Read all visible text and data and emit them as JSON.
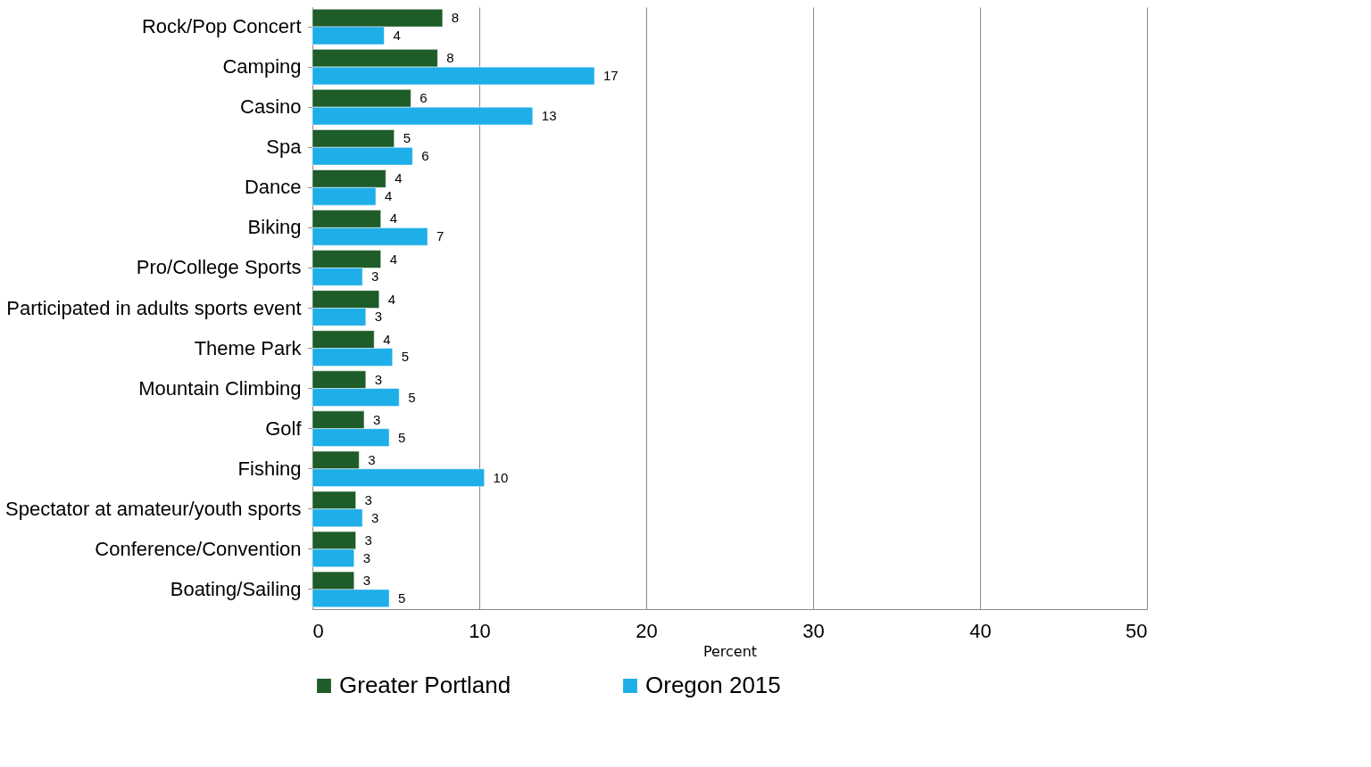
{
  "chart_data": {
    "type": "bar",
    "orientation": "horizontal",
    "xlabel": "Percent",
    "categories": [
      "Rock/Pop Concert",
      "Camping",
      "Casino",
      "Spa",
      "Dance",
      "Biking",
      "Pro/College Sports",
      "Participated in adults sports event",
      "Theme Park",
      "Mountain Climbing",
      "Golf",
      "Fishing",
      "Spectator at amateur/youth sports",
      "Conference/Convention",
      "Boating/Sailing"
    ],
    "series": [
      {
        "name": "Greater Portland",
        "color": "#1e5c2a",
        "values": [
          7.8,
          7.5,
          5.9,
          4.9,
          4.4,
          4.1,
          4.1,
          4.0,
          3.7,
          3.2,
          3.1,
          2.8,
          2.6,
          2.6,
          2.5
        ],
        "value_labels": [
          "8",
          "8",
          "6",
          "5",
          "4",
          "4",
          "4",
          "4",
          "4",
          "3",
          "3",
          "3",
          "3",
          "3",
          "3"
        ]
      },
      {
        "name": "Oregon 2015",
        "color": "#1eaee8",
        "values": [
          4.3,
          16.9,
          13.2,
          6.0,
          3.8,
          6.9,
          3.0,
          3.2,
          4.8,
          5.2,
          4.6,
          10.3,
          3.0,
          2.5,
          4.6
        ],
        "value_labels": [
          "4",
          "17",
          "13",
          "6",
          "4",
          "7",
          "3",
          "3",
          "5",
          "5",
          "5",
          "10",
          "3",
          "3",
          "5"
        ]
      }
    ],
    "xlim": [
      0,
      50
    ],
    "xticks": [
      0,
      10,
      20,
      30,
      40,
      50
    ],
    "grid": "x",
    "legend": "bottom"
  }
}
